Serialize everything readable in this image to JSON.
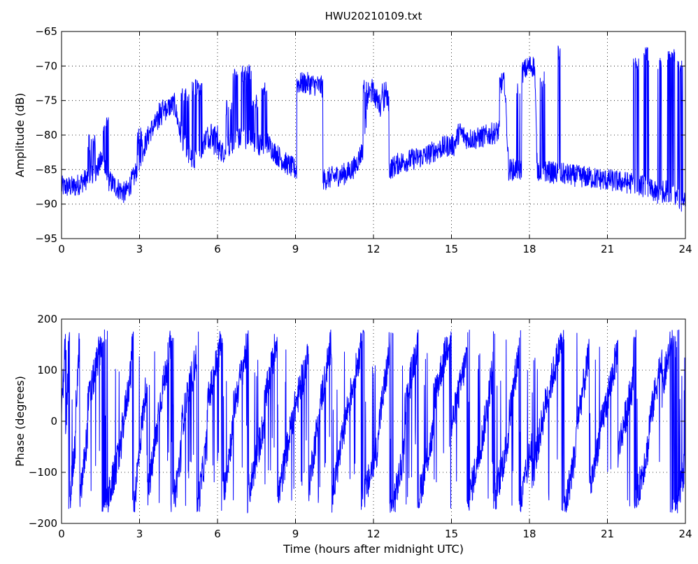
{
  "chart_data": [
    {
      "type": "line",
      "title": "HWU20210109.txt",
      "xlabel": "",
      "ylabel": "Amplitude (dB)",
      "xlim": [
        0,
        24
      ],
      "ylim": [
        -95,
        -65
      ],
      "xticks": [
        0,
        3,
        6,
        9,
        12,
        15,
        18,
        21,
        24
      ],
      "yticks": [
        -95,
        -90,
        -85,
        -80,
        -75,
        -70,
        -65
      ],
      "xtick_labels": [
        "0",
        "3",
        "6",
        "9",
        "12",
        "15",
        "18",
        "21",
        "24"
      ],
      "ytick_labels": [
        "−95",
        "−90",
        "−85",
        "−80",
        "−75",
        "−70",
        "−65"
      ],
      "grid": true,
      "grid_style": "dotted",
      "line_color": "#0000ff",
      "levels": [
        [
          0.0,
          -87.5
        ],
        [
          0.5,
          -87.5
        ],
        [
          0.9,
          -86.5
        ],
        [
          1.3,
          -85.5
        ],
        [
          1.55,
          -83.5
        ],
        [
          1.8,
          -86.5
        ],
        [
          2.1,
          -87.5
        ],
        [
          2.45,
          -88.5
        ],
        [
          2.8,
          -86
        ],
        [
          3.1,
          -82.5
        ],
        [
          3.4,
          -79.5
        ],
        [
          3.8,
          -77.5
        ],
        [
          4.1,
          -76
        ],
        [
          4.35,
          -75.5
        ],
        [
          4.55,
          -79.5
        ],
        [
          4.8,
          -82
        ],
        [
          5.1,
          -84
        ],
        [
          5.3,
          -82.5
        ],
        [
          5.6,
          -80
        ],
        [
          5.9,
          -81.5
        ],
        [
          6.2,
          -82.5
        ],
        [
          6.5,
          -81.5
        ],
        [
          6.8,
          -80.5
        ],
        [
          7.1,
          -80.5
        ],
        [
          7.4,
          -81
        ],
        [
          7.7,
          -81.5
        ],
        [
          7.9,
          -81
        ],
        [
          8.2,
          -82.5
        ],
        [
          8.6,
          -84
        ],
        [
          9.0,
          -85
        ],
        [
          9.05,
          -72.5
        ],
        [
          9.5,
          -72.5
        ],
        [
          10.0,
          -73
        ],
        [
          10.05,
          -86.5
        ],
        [
          10.5,
          -86
        ],
        [
          11.0,
          -85.5
        ],
        [
          11.3,
          -84.5
        ],
        [
          11.6,
          -82
        ],
        [
          11.8,
          -74
        ],
        [
          12.0,
          -74
        ],
        [
          12.3,
          -76
        ],
        [
          12.5,
          -75
        ],
        [
          12.6,
          -85
        ],
        [
          13.0,
          -84
        ],
        [
          13.5,
          -83.5
        ],
        [
          14.0,
          -83
        ],
        [
          14.5,
          -82
        ],
        [
          14.9,
          -81.5
        ],
        [
          15.1,
          -81.5
        ],
        [
          15.3,
          -79.5
        ],
        [
          15.6,
          -80.5
        ],
        [
          16.0,
          -80.5
        ],
        [
          16.4,
          -80
        ],
        [
          16.8,
          -79.5
        ],
        [
          16.85,
          -72.5
        ],
        [
          17.05,
          -72.5
        ],
        [
          17.2,
          -85
        ],
        [
          17.6,
          -85
        ],
        [
          17.7,
          -71
        ],
        [
          18.0,
          -70
        ],
        [
          18.2,
          -70
        ],
        [
          18.3,
          -85
        ],
        [
          19.0,
          -85.5
        ],
        [
          20.0,
          -86
        ],
        [
          21.0,
          -86.5
        ],
        [
          22.0,
          -87
        ],
        [
          22.5,
          -87.5
        ],
        [
          22.9,
          -88.5
        ],
        [
          23.3,
          -88
        ],
        [
          23.7,
          -89
        ],
        [
          24.0,
          -90
        ]
      ],
      "excursions": [
        [
          1.0,
          1.3,
          -81
        ],
        [
          1.6,
          1.8,
          -78.5
        ],
        [
          2.9,
          3.1,
          -80
        ],
        [
          3.7,
          4.1,
          -76
        ],
        [
          4.6,
          4.9,
          -74.5
        ],
        [
          5.0,
          5.4,
          -73
        ],
        [
          5.7,
          6.0,
          -79
        ],
        [
          6.3,
          6.6,
          -76
        ],
        [
          6.6,
          6.8,
          -71
        ],
        [
          6.9,
          7.3,
          -71
        ],
        [
          7.3,
          7.6,
          -75
        ],
        [
          7.7,
          7.9,
          -73.5
        ],
        [
          11.6,
          11.75,
          -73
        ],
        [
          11.9,
          12.0,
          -73
        ],
        [
          12.3,
          12.5,
          -73.5
        ],
        [
          17.5,
          17.65,
          -73
        ],
        [
          18.4,
          18.6,
          -72
        ],
        [
          19.1,
          19.2,
          -68
        ],
        [
          22.0,
          22.2,
          -70
        ],
        [
          22.4,
          22.6,
          -68.5
        ],
        [
          22.9,
          23.1,
          -69.5
        ],
        [
          23.3,
          23.6,
          -68.5
        ],
        [
          23.7,
          23.9,
          -70
        ]
      ]
    },
    {
      "type": "line",
      "title": "",
      "xlabel": "Time (hours after midnight UTC)",
      "ylabel": "Phase (degrees)",
      "xlim": [
        0,
        24
      ],
      "ylim": [
        -200,
        200
      ],
      "xticks": [
        0,
        3,
        6,
        9,
        12,
        15,
        18,
        21,
        24
      ],
      "yticks": [
        -200,
        -100,
        0,
        100,
        200
      ],
      "xtick_labels": [
        "0",
        "3",
        "6",
        "9",
        "12",
        "15",
        "18",
        "21",
        "24"
      ],
      "ytick_labels": [
        "−200",
        "−100",
        "0",
        "100",
        "200"
      ],
      "grid": true,
      "grid_style": "dotted",
      "line_color": "#0000ff",
      "phase_wraps_at": [
        -180,
        180
      ],
      "drift": [
        [
          0.0,
          0.15,
          90
        ],
        [
          0.15,
          0.25,
          20
        ],
        [
          0.25,
          0.55,
          -110
        ],
        [
          0.55,
          0.7,
          95
        ],
        [
          0.7,
          1.0,
          -90
        ],
        [
          1.0,
          1.6,
          100
        ],
        [
          1.6,
          2.3,
          -120
        ],
        [
          2.3,
          2.7,
          40
        ],
        [
          2.7,
          3.0,
          -130
        ],
        [
          3.0,
          3.3,
          20
        ],
        [
          3.3,
          3.7,
          -80
        ],
        [
          3.7,
          4.2,
          80
        ],
        [
          4.2,
          4.6,
          -130
        ],
        [
          4.6,
          5.2,
          60
        ],
        [
          5.2,
          5.6,
          -110
        ],
        [
          5.6,
          6.2,
          100
        ],
        [
          6.2,
          6.6,
          -80
        ],
        [
          6.6,
          7.2,
          90
        ],
        [
          7.2,
          7.8,
          -70
        ],
        [
          7.8,
          8.3,
          100
        ],
        [
          8.3,
          8.8,
          -90
        ],
        [
          8.8,
          9.5,
          60
        ],
        [
          9.5,
          9.9,
          -60
        ],
        [
          9.9,
          10.4,
          90
        ],
        [
          10.4,
          10.9,
          -80
        ],
        [
          10.9,
          11.5,
          70
        ],
        [
          11.5,
          12.2,
          -110
        ],
        [
          12.2,
          12.6,
          60
        ],
        [
          12.6,
          13.2,
          -130
        ],
        [
          13.2,
          13.7,
          90
        ],
        [
          13.7,
          14.3,
          -90
        ],
        [
          14.3,
          15.0,
          110
        ],
        [
          15.0,
          15.6,
          60
        ],
        [
          15.6,
          16.2,
          -100
        ],
        [
          16.2,
          16.6,
          40
        ],
        [
          16.6,
          17.2,
          -100
        ],
        [
          17.2,
          17.6,
          70
        ],
        [
          17.6,
          18.1,
          -110
        ],
        [
          18.1,
          18.6,
          -40
        ],
        [
          18.6,
          19.3,
          100
        ],
        [
          19.3,
          19.8,
          -120
        ],
        [
          19.8,
          20.3,
          60
        ],
        [
          20.3,
          20.8,
          -70
        ],
        [
          20.8,
          21.4,
          70
        ],
        [
          21.4,
          22.0,
          10
        ],
        [
          22.0,
          22.6,
          -110
        ],
        [
          22.6,
          23.1,
          60
        ],
        [
          23.1,
          23.6,
          130
        ],
        [
          23.6,
          24.0,
          -140
        ]
      ]
    }
  ]
}
